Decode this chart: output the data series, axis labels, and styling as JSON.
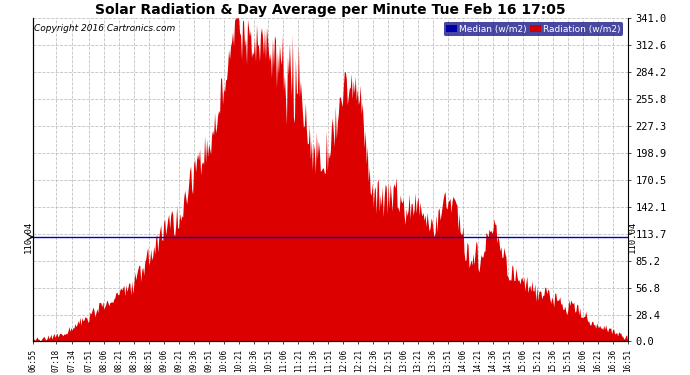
{
  "title": "Solar Radiation & Day Average per Minute Tue Feb 16 17:05",
  "copyright": "Copyright 2016 Cartronics.com",
  "median_value": 110.04,
  "y_max": 341.0,
  "y_min": 0.0,
  "y_ticks": [
    0.0,
    28.4,
    56.8,
    85.2,
    113.7,
    142.1,
    170.5,
    198.9,
    227.3,
    255.8,
    284.2,
    312.6,
    341.0
  ],
  "background_color": "#ffffff",
  "fill_color": "#dd0000",
  "median_color": "#0000cc",
  "grid_color": "#bbbbbb",
  "legend_median_bg": "#0000aa",
  "legend_radiation_bg": "#cc0000",
  "x_labels": [
    "06:55",
    "07:18",
    "07:34",
    "07:51",
    "08:06",
    "08:21",
    "08:36",
    "08:51",
    "09:06",
    "09:21",
    "09:36",
    "09:51",
    "10:06",
    "10:21",
    "10:36",
    "10:51",
    "11:06",
    "11:21",
    "11:36",
    "11:51",
    "12:06",
    "12:21",
    "12:36",
    "12:51",
    "13:06",
    "13:21",
    "13:36",
    "13:51",
    "14:06",
    "14:21",
    "14:36",
    "14:51",
    "15:06",
    "15:21",
    "15:36",
    "15:51",
    "16:06",
    "16:21",
    "16:36",
    "16:51"
  ]
}
